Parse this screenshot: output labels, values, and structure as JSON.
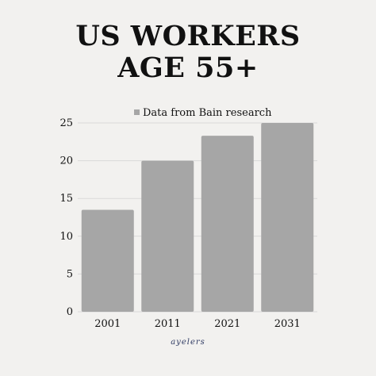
{
  "title_line1": "US WORKERS",
  "title_line2": "AGE 55+",
  "brand": "ayelers",
  "colors": {
    "background": "#f2f1ef",
    "bar": "#a6a6a6",
    "grid": "#d9d9d9",
    "text": "#111111",
    "brand": "#2f3b63"
  },
  "chart_data": {
    "type": "bar",
    "categories": [
      "2001",
      "2011",
      "2021",
      "2031"
    ],
    "series": [
      {
        "name": "Data from Bain research",
        "values": [
          13.5,
          20,
          23.3,
          25
        ]
      }
    ],
    "ylim": [
      0,
      25
    ],
    "yticks": [
      "0",
      "5",
      "10",
      "15",
      "20",
      "25"
    ],
    "xlabel": "",
    "ylabel": "",
    "grid": true,
    "legend": "top-center"
  }
}
